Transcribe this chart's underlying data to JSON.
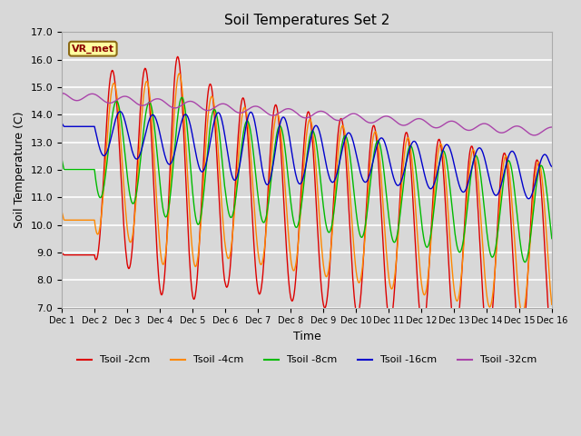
{
  "title": "Soil Temperatures Set 2",
  "xlabel": "Time",
  "ylabel": "Soil Temperature (C)",
  "ylim": [
    7.0,
    17.0
  ],
  "yticks": [
    7.0,
    8.0,
    9.0,
    10.0,
    11.0,
    12.0,
    13.0,
    14.0,
    15.0,
    16.0,
    17.0
  ],
  "xtick_labels": [
    "Dec 1",
    "Dec 2",
    "Dec 3",
    "Dec 4",
    "Dec 5",
    "Dec 6",
    "Dec 7",
    "Dec 8",
    "Dec 9",
    "Dec 10",
    "Dec 11",
    "Dec 12",
    "Dec 13",
    "Dec 14",
    "Dec 15",
    "Dec 16"
  ],
  "annotation_text": "VR_met",
  "colors": {
    "tsoil_2cm": "#dd0000",
    "tsoil_4cm": "#ff8800",
    "tsoil_8cm": "#00bb00",
    "tsoil_16cm": "#0000cc",
    "tsoil_32cm": "#aa44aa"
  },
  "legend_labels": [
    "Tsoil -2cm",
    "Tsoil -4cm",
    "Tsoil -8cm",
    "Tsoil -16cm",
    "Tsoil -32cm"
  ],
  "bg_color": "#d8d8d8",
  "n_points": 720
}
